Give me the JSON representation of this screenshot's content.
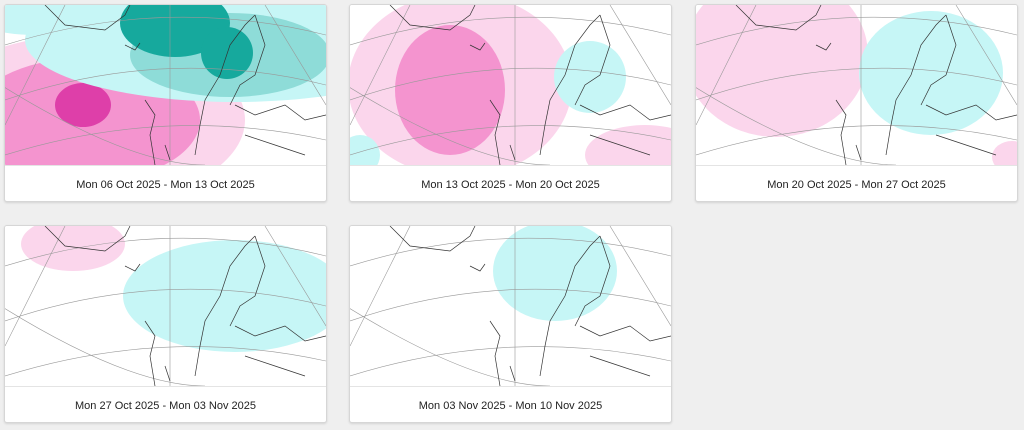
{
  "cards": [
    {
      "caption": "Mon 06 Oct 2025 - Mon 13 Oct 2025"
    },
    {
      "caption": "Mon 13 Oct 2025 - Mon 20 Oct 2025"
    },
    {
      "caption": "Mon 20 Oct 2025 - Mon 27 Oct 2025"
    },
    {
      "caption": "Mon 27 Oct 2025 - Mon 03 Nov 2025"
    },
    {
      "caption": "Mon 03 Nov 2025 - Mon 10 Nov 2025"
    }
  ]
}
